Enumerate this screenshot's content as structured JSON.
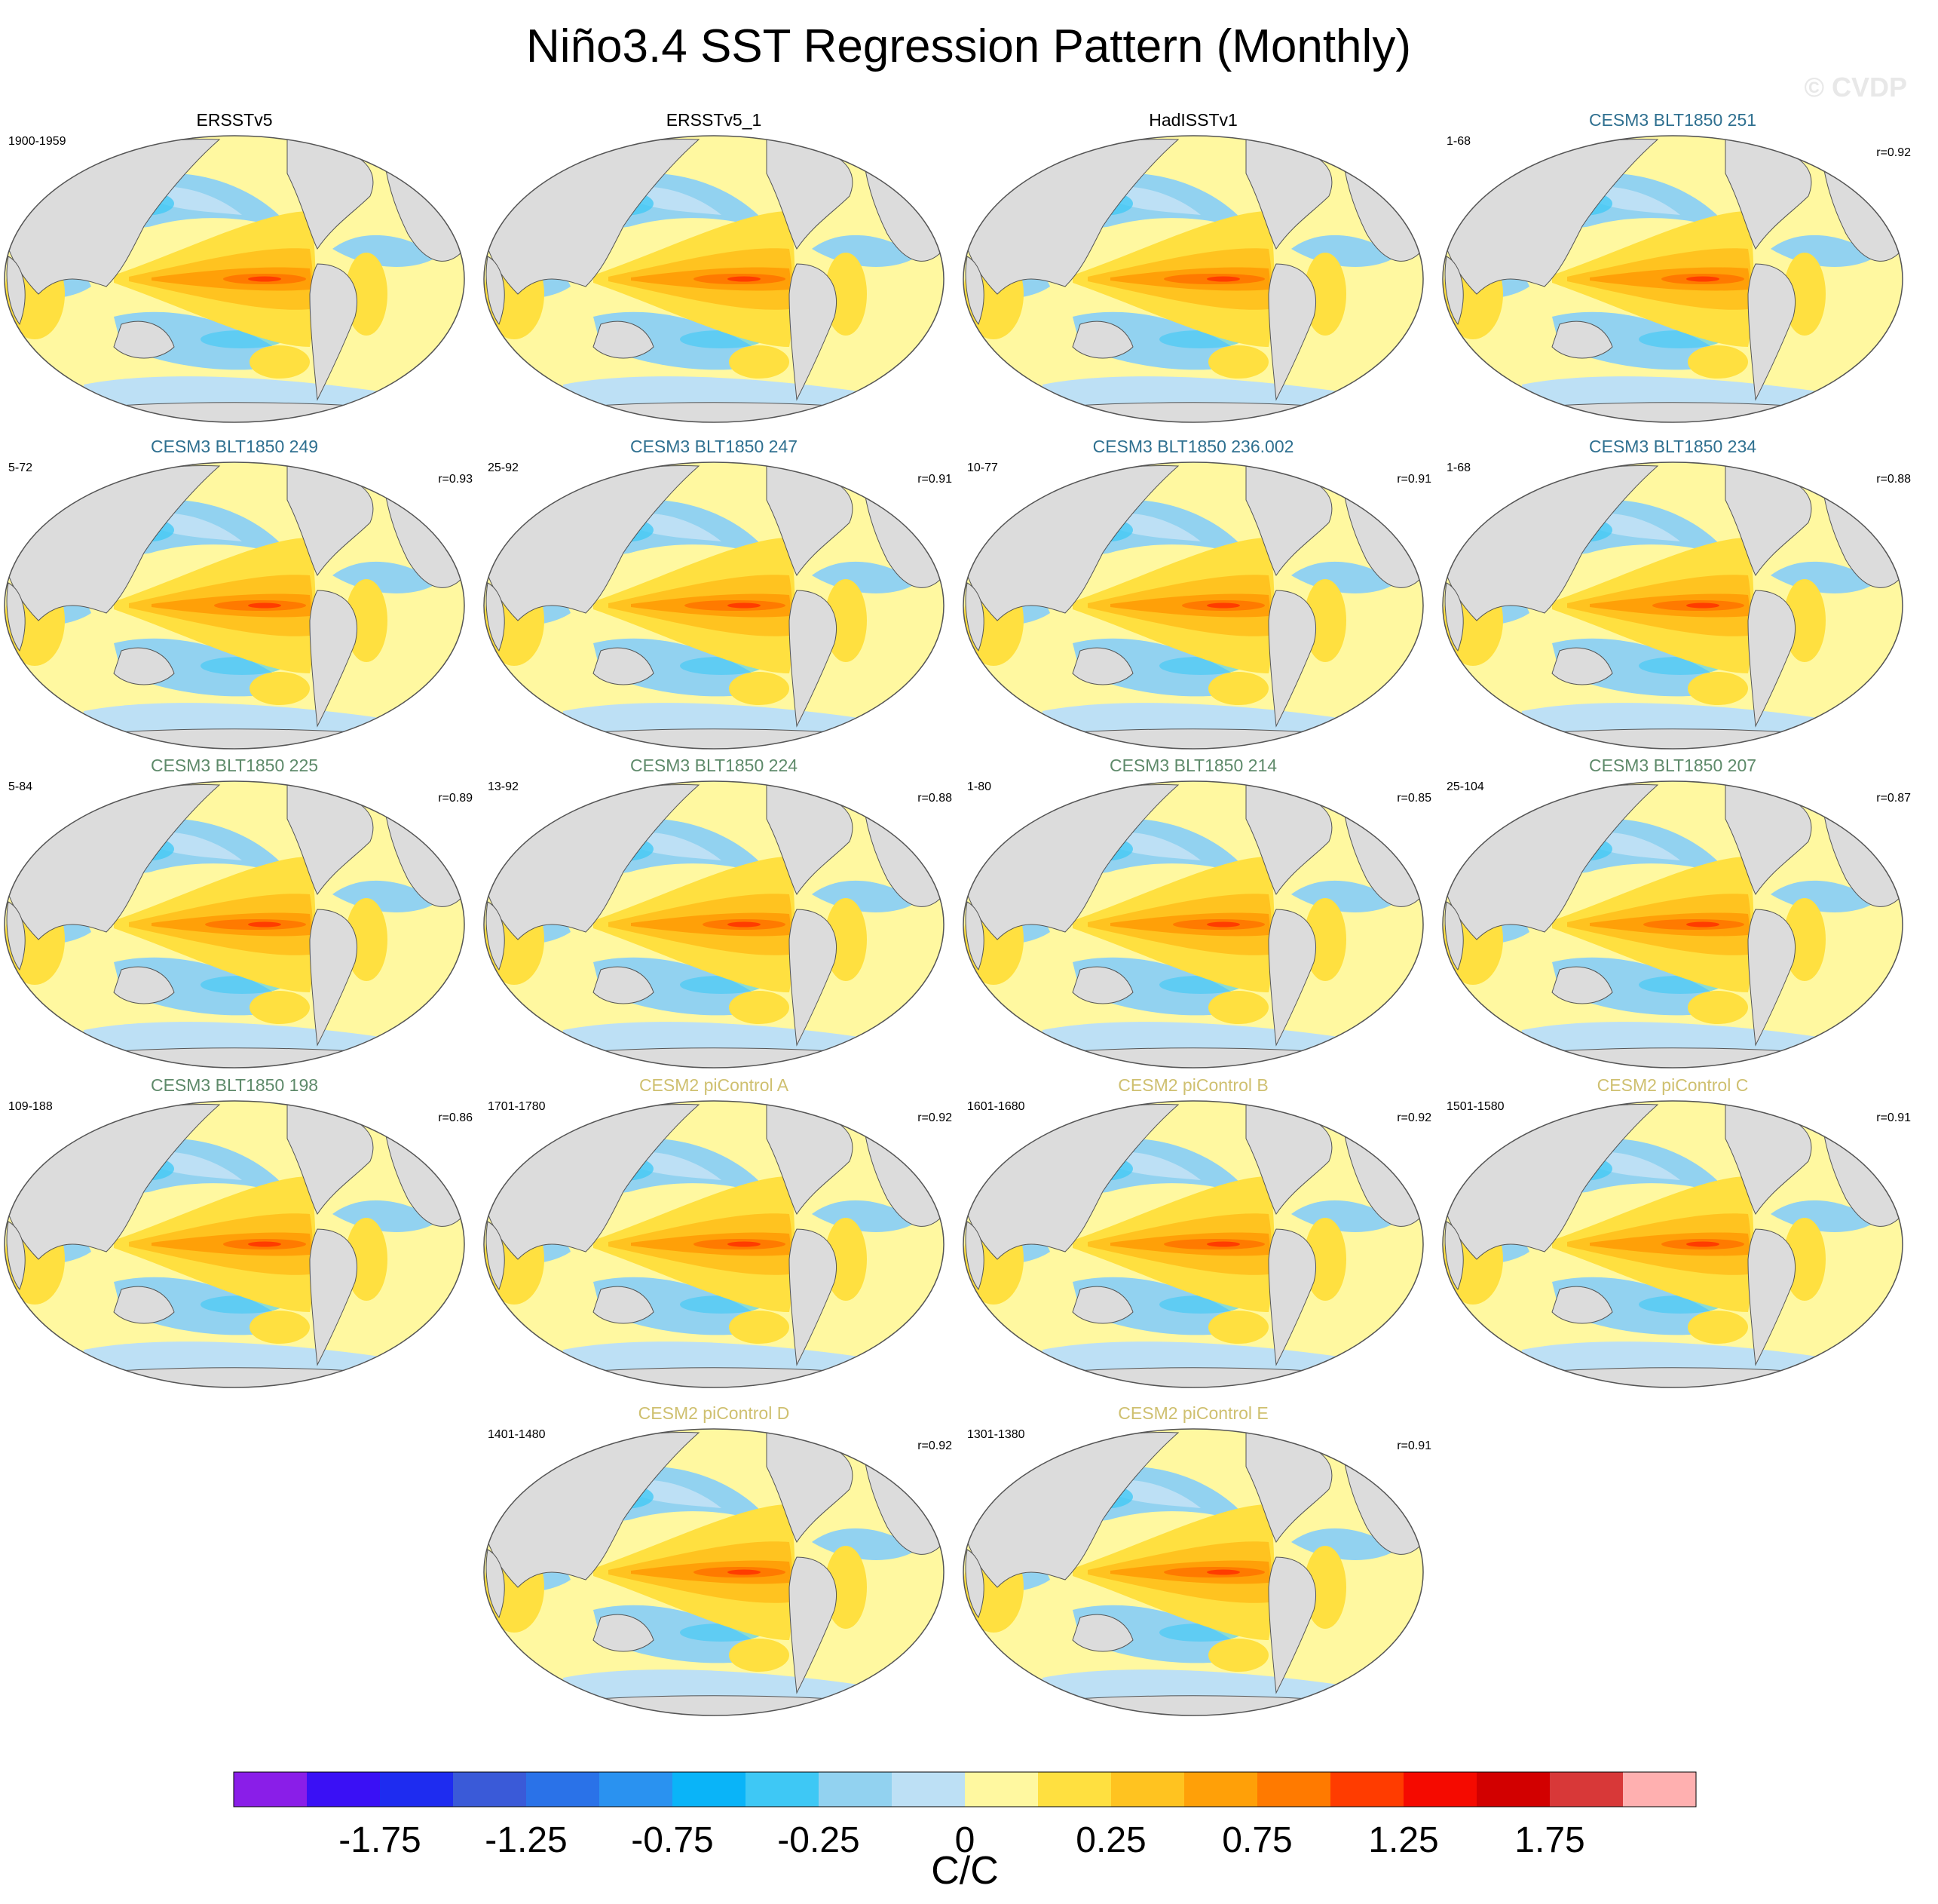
{
  "title": "Niño3.4 SST Regression Pattern (Monthly)",
  "watermark": "© CVDP",
  "chart_data": {
    "type": "map-panels",
    "variable": "SST regression onto Niño3.4 index",
    "units": "C/C",
    "colorbar": {
      "levels": [
        -2.0,
        -1.75,
        -1.5,
        -1.25,
        -1.0,
        -0.75,
        -0.5,
        -0.25,
        0,
        0.25,
        0.5,
        0.75,
        1.0,
        1.25,
        1.5,
        1.75,
        2.0
      ],
      "tick_labels": [
        "-1.75",
        "-1.25",
        "-0.75",
        "-0.25",
        "0",
        "0.25",
        "0.75",
        "1.25",
        "1.75"
      ],
      "colors": [
        "#8a1ee8",
        "#3a10f5",
        "#1e2cf0",
        "#3a5ad8",
        "#2a72e8",
        "#2a92f0",
        "#0ab4f8",
        "#3ec8f5",
        "#92d2f0",
        "#bde0f5",
        "#fff8a0",
        "#ffe040",
        "#ffc320",
        "#ffa008",
        "#ff7a00",
        "#ff3c00",
        "#f50a00",
        "#d20000",
        "#d83838",
        "#ffb0b0"
      ]
    },
    "panels": [
      {
        "name": "ERSSTv5",
        "years": "1900-1959",
        "r": "",
        "color": "#000000"
      },
      {
        "name": "ERSSTv5_1",
        "years": "",
        "r": "",
        "color": "#000000"
      },
      {
        "name": "HadISSTv1",
        "years": "",
        "r": "",
        "color": "#000000"
      },
      {
        "name": "CESM3 BLT1850 251",
        "years": "1-68",
        "r": "r=0.92",
        "color": "#2f7090"
      },
      {
        "name": "CESM3 BLT1850 249",
        "years": "5-72",
        "r": "r=0.93",
        "color": "#2f7090"
      },
      {
        "name": "CESM3 BLT1850 247",
        "years": "25-92",
        "r": "r=0.91",
        "color": "#2f7090"
      },
      {
        "name": "CESM3 BLT1850 236.002",
        "years": "10-77",
        "r": "r=0.91",
        "color": "#2f7090"
      },
      {
        "name": "CESM3 BLT1850 234",
        "years": "1-68",
        "r": "r=0.88",
        "color": "#2f7090"
      },
      {
        "name": "CESM3 BLT1850 225",
        "years": "5-84",
        "r": "r=0.89",
        "color": "#5e8a6a"
      },
      {
        "name": "CESM3 BLT1850 224",
        "years": "13-92",
        "r": "r=0.88",
        "color": "#5e8a6a"
      },
      {
        "name": "CESM3 BLT1850 214",
        "years": "1-80",
        "r": "r=0.85",
        "color": "#5e8a6a"
      },
      {
        "name": "CESM3 BLT1850 207",
        "years": "25-104",
        "r": "r=0.87",
        "color": "#5e8a6a"
      },
      {
        "name": "CESM3 BLT1850 198",
        "years": "109-188",
        "r": "r=0.86",
        "color": "#5e8a6a"
      },
      {
        "name": "CESM2 piControl A",
        "years": "1701-1780",
        "r": "r=0.92",
        "color": "#cfc070"
      },
      {
        "name": "CESM2 piControl B",
        "years": "1601-1680",
        "r": "r=0.92",
        "color": "#cfc070"
      },
      {
        "name": "CESM2 piControl C",
        "years": "1501-1580",
        "r": "r=0.91",
        "color": "#cfc070"
      },
      {
        "name": "CESM2 piControl D",
        "years": "1401-1480",
        "r": "r=0.92",
        "color": "#cfc070"
      },
      {
        "name": "CESM2 piControl E",
        "years": "1301-1380",
        "r": "r=0.91",
        "color": "#cfc070"
      }
    ]
  }
}
